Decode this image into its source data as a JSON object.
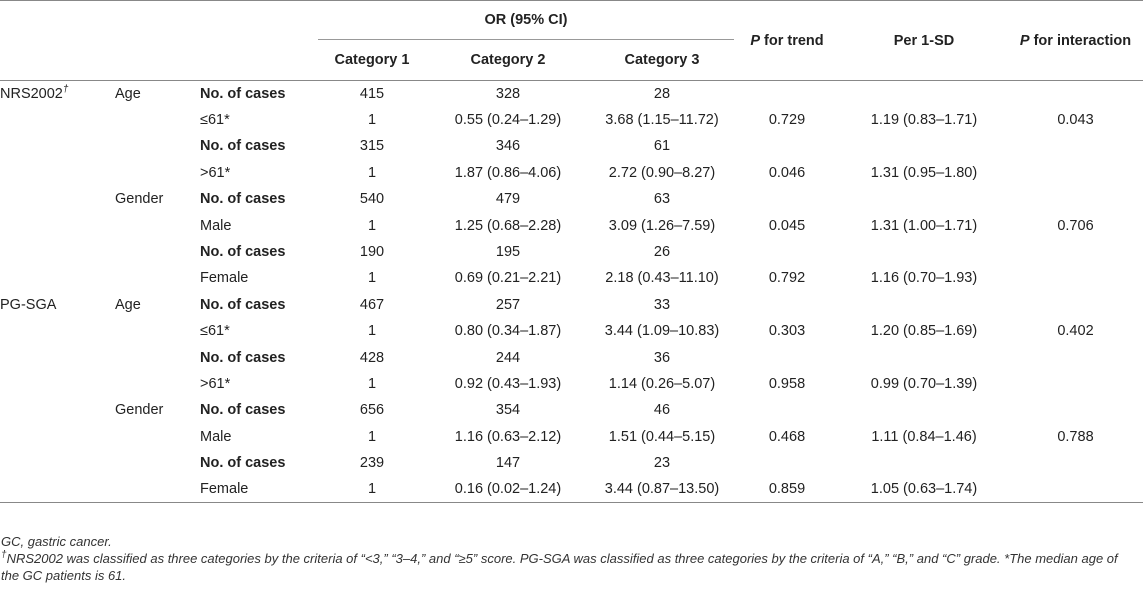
{
  "header": {
    "or_group": "OR (95% CI)",
    "cat1": "Category 1",
    "cat2": "Category 2",
    "cat3": "Category 3",
    "p_trend_p": "P",
    "p_trend_rest": " for trend",
    "per_sd": "Per 1-SD",
    "p_inter_p": "P",
    "p_inter_rest": " for interaction"
  },
  "rows": [
    {
      "tool": "NRS2002",
      "tool_sup": "†",
      "factor": "Age",
      "label": "No. of cases",
      "label_bold": true,
      "c1": "415",
      "c2": "328",
      "c3": "28",
      "trend": "",
      "sd": "",
      "inter": ""
    },
    {
      "tool": "",
      "tool_sup": "",
      "factor": "",
      "label": "≤61*",
      "label_bold": false,
      "c1": "1",
      "c2": "0.55 (0.24–1.29)",
      "c3": "3.68 (1.15–11.72)",
      "trend": "0.729",
      "sd": "1.19 (0.83–1.71)",
      "inter": "0.043"
    },
    {
      "tool": "",
      "tool_sup": "",
      "factor": "",
      "label": "No. of cases",
      "label_bold": true,
      "c1": "315",
      "c2": "346",
      "c3": "61",
      "trend": "",
      "sd": "",
      "inter": ""
    },
    {
      "tool": "",
      "tool_sup": "",
      "factor": "",
      "label": ">61*",
      "label_bold": false,
      "c1": "1",
      "c2": "1.87 (0.86–4.06)",
      "c3": "2.72 (0.90–8.27)",
      "trend": "0.046",
      "sd": "1.31 (0.95–1.80)",
      "inter": ""
    },
    {
      "tool": "",
      "tool_sup": "",
      "factor": "Gender",
      "label": "No. of cases",
      "label_bold": true,
      "c1": "540",
      "c2": "479",
      "c3": "63",
      "trend": "",
      "sd": "",
      "inter": ""
    },
    {
      "tool": "",
      "tool_sup": "",
      "factor": "",
      "label": "Male",
      "label_bold": false,
      "c1": "1",
      "c2": "1.25 (0.68–2.28)",
      "c3": "3.09 (1.26–7.59)",
      "trend": "0.045",
      "sd": "1.31 (1.00–1.71)",
      "inter": "0.706"
    },
    {
      "tool": "",
      "tool_sup": "",
      "factor": "",
      "label": "No. of cases",
      "label_bold": true,
      "c1": "190",
      "c2": "195",
      "c3": "26",
      "trend": "",
      "sd": "",
      "inter": ""
    },
    {
      "tool": "",
      "tool_sup": "",
      "factor": "",
      "label": "Female",
      "label_bold": false,
      "c1": "1",
      "c2": "0.69 (0.21–2.21)",
      "c3": "2.18 (0.43–11.10)",
      "trend": "0.792",
      "sd": "1.16 (0.70–1.93)",
      "inter": ""
    },
    {
      "tool": "PG-SGA",
      "tool_sup": "",
      "factor": "Age",
      "label": "No. of cases",
      "label_bold": true,
      "c1": "467",
      "c2": "257",
      "c3": "33",
      "trend": "",
      "sd": "",
      "inter": ""
    },
    {
      "tool": "",
      "tool_sup": "",
      "factor": "",
      "label": "≤61*",
      "label_bold": false,
      "c1": "1",
      "c2": "0.80 (0.34–1.87)",
      "c3": "3.44 (1.09–10.83)",
      "trend": "0.303",
      "sd": "1.20 (0.85–1.69)",
      "inter": "0.402"
    },
    {
      "tool": "",
      "tool_sup": "",
      "factor": "",
      "label": "No. of cases",
      "label_bold": true,
      "c1": "428",
      "c2": "244",
      "c3": "36",
      "trend": "",
      "sd": "",
      "inter": ""
    },
    {
      "tool": "",
      "tool_sup": "",
      "factor": "",
      "label": ">61*",
      "label_bold": false,
      "c1": "1",
      "c2": "0.92 (0.43–1.93)",
      "c3": "1.14 (0.26–5.07)",
      "trend": "0.958",
      "sd": "0.99 (0.70–1.39)",
      "inter": ""
    },
    {
      "tool": "",
      "tool_sup": "",
      "factor": "Gender",
      "label": "No. of cases",
      "label_bold": true,
      "c1": "656",
      "c2": "354",
      "c3": "46",
      "trend": "",
      "sd": "",
      "inter": ""
    },
    {
      "tool": "",
      "tool_sup": "",
      "factor": "",
      "label": "Male",
      "label_bold": false,
      "c1": "1",
      "c2": "1.16 (0.63–2.12)",
      "c3": "1.51 (0.44–5.15)",
      "trend": "0.468",
      "sd": "1.11 (0.84–1.46)",
      "inter": "0.788"
    },
    {
      "tool": "",
      "tool_sup": "",
      "factor": "",
      "label": "No. of cases",
      "label_bold": true,
      "c1": "239",
      "c2": "147",
      "c3": "23",
      "trend": "",
      "sd": "",
      "inter": ""
    },
    {
      "tool": "",
      "tool_sup": "",
      "factor": "",
      "label": "Female",
      "label_bold": false,
      "c1": "1",
      "c2": "0.16 (0.02–1.24)",
      "c3": "3.44 (0.87–13.50)",
      "trend": "0.859",
      "sd": "1.05 (0.63–1.74)",
      "inter": ""
    }
  ],
  "notes": {
    "abbrev": "GC, gastric cancer.",
    "dagger": "†",
    "footnote": "NRS2002 was classified as three categories by the criteria of “<3,” “3–4,” and “≥5” score. PG-SGA was classified as three categories by the criteria of “A,” “B,” and “C” grade. *The median age of the GC patients is 61."
  }
}
